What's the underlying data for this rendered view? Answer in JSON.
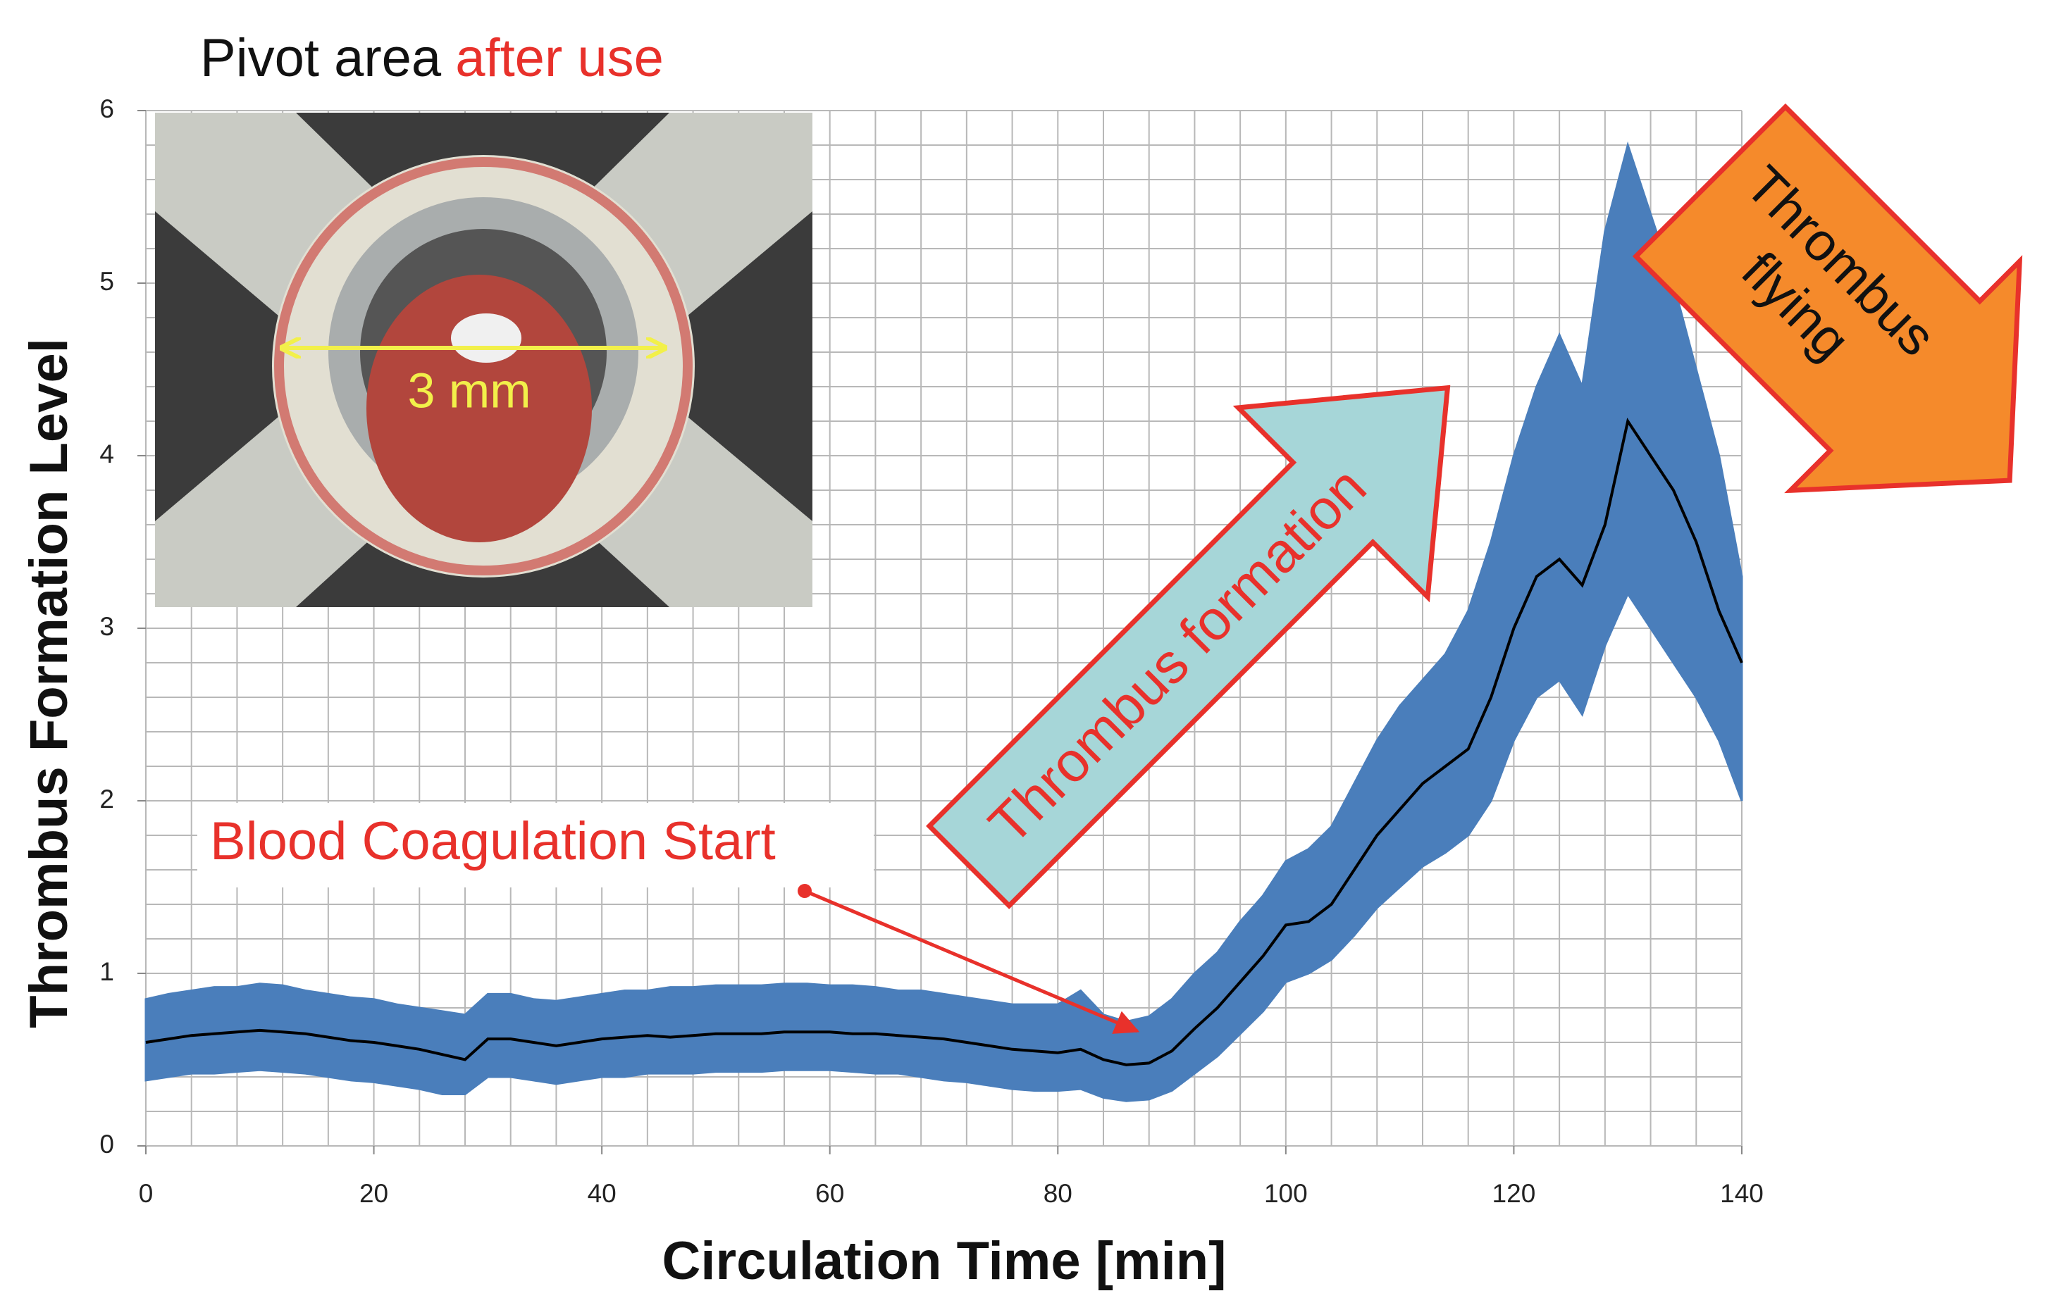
{
  "chart_data": {
    "type": "line",
    "inset_title": [
      "Pivot area",
      "after use"
    ],
    "inset_scale_label": "3 mm",
    "xlabel": "Circulation Time [min]",
    "ylabel": "Thrombus Formation Level",
    "annotations": {
      "coagulation": "Blood Coagulation Start",
      "formation": "Thrombus formation",
      "flying": [
        "Thrombus",
        "flying"
      ]
    },
    "xlim": [
      0,
      140
    ],
    "ylim": [
      0,
      6
    ],
    "xticks": [
      0,
      20,
      40,
      60,
      80,
      100,
      120,
      140
    ],
    "yticks": [
      0,
      1,
      2,
      3,
      4,
      5,
      6
    ],
    "grid": true,
    "xgrid": [
      0,
      4,
      8,
      12,
      16,
      20,
      24,
      28,
      32,
      36,
      40,
      44,
      48,
      52,
      56,
      60,
      64,
      68,
      72,
      76,
      80,
      84,
      88,
      92,
      96,
      100,
      104,
      108,
      112,
      116,
      120,
      124,
      128,
      132,
      136,
      140
    ],
    "ygrid": [
      0,
      0.2,
      0.4,
      0.6,
      0.8,
      1,
      1.2,
      1.4,
      1.6,
      1.8,
      2,
      2.2,
      2.4,
      2.6,
      2.8,
      3,
      3.2,
      3.4,
      3.6,
      3.8,
      4,
      4.2,
      4.4,
      4.6,
      4.8,
      5,
      5.2,
      5.4,
      5.6,
      5.8,
      6
    ],
    "x": [
      0,
      2,
      4,
      6,
      8,
      10,
      12,
      14,
      16,
      18,
      20,
      22,
      24,
      26,
      28,
      30,
      32,
      34,
      36,
      38,
      40,
      42,
      44,
      46,
      48,
      50,
      52,
      54,
      56,
      58,
      60,
      62,
      64,
      66,
      68,
      70,
      72,
      74,
      76,
      78,
      80,
      82,
      84,
      86,
      88,
      90,
      92,
      94,
      96,
      98,
      100,
      102,
      104,
      106,
      108,
      110,
      112,
      114,
      116,
      118,
      120,
      122,
      124,
      126,
      128,
      130,
      132,
      134,
      136,
      138,
      140
    ],
    "series": [
      {
        "color": "#4a7ebb",
        "low": [
          0.38,
          0.4,
          0.42,
          0.42,
          0.43,
          0.44,
          0.43,
          0.42,
          0.4,
          0.38,
          0.37,
          0.35,
          0.33,
          0.3,
          0.3,
          0.4,
          0.4,
          0.38,
          0.36,
          0.38,
          0.4,
          0.4,
          0.42,
          0.42,
          0.42,
          0.43,
          0.43,
          0.43,
          0.44,
          0.44,
          0.44,
          0.43,
          0.42,
          0.42,
          0.4,
          0.38,
          0.37,
          0.35,
          0.33,
          0.32,
          0.32,
          0.33,
          0.28,
          0.26,
          0.27,
          0.32,
          0.42,
          0.52,
          0.65,
          0.78,
          0.95,
          1.0,
          1.08,
          1.22,
          1.38,
          1.5,
          1.62,
          1.7,
          1.8,
          2.0,
          2.35,
          2.6,
          2.7,
          2.5,
          2.9,
          3.2,
          3.0,
          2.8,
          2.6,
          2.35,
          2.0
        ],
        "high": [
          0.85,
          0.88,
          0.9,
          0.92,
          0.92,
          0.94,
          0.93,
          0.9,
          0.88,
          0.86,
          0.85,
          0.82,
          0.8,
          0.78,
          0.76,
          0.88,
          0.88,
          0.85,
          0.84,
          0.86,
          0.88,
          0.9,
          0.9,
          0.92,
          0.92,
          0.93,
          0.93,
          0.93,
          0.94,
          0.94,
          0.93,
          0.93,
          0.92,
          0.9,
          0.9,
          0.88,
          0.86,
          0.84,
          0.82,
          0.82,
          0.82,
          0.9,
          0.76,
          0.72,
          0.75,
          0.85,
          1.0,
          1.12,
          1.3,
          1.45,
          1.65,
          1.72,
          1.85,
          2.1,
          2.35,
          2.55,
          2.7,
          2.85,
          3.1,
          3.5,
          4.0,
          4.4,
          4.7,
          4.4,
          5.3,
          5.8,
          5.4,
          5.0,
          4.5,
          4.0,
          3.3
        ]
      },
      {
        "color": "#000000",
        "values": [
          0.6,
          0.62,
          0.64,
          0.65,
          0.66,
          0.67,
          0.66,
          0.65,
          0.63,
          0.61,
          0.6,
          0.58,
          0.56,
          0.53,
          0.5,
          0.62,
          0.62,
          0.6,
          0.58,
          0.6,
          0.62,
          0.63,
          0.64,
          0.63,
          0.64,
          0.65,
          0.65,
          0.65,
          0.66,
          0.66,
          0.66,
          0.65,
          0.65,
          0.64,
          0.63,
          0.62,
          0.6,
          0.58,
          0.56,
          0.55,
          0.54,
          0.56,
          0.5,
          0.47,
          0.48,
          0.55,
          0.68,
          0.8,
          0.95,
          1.1,
          1.28,
          1.3,
          1.4,
          1.6,
          1.8,
          1.95,
          2.1,
          2.2,
          2.3,
          2.6,
          3.0,
          3.3,
          3.4,
          3.25,
          3.6,
          4.2,
          4.0,
          3.8,
          3.5,
          3.1,
          2.8
        ]
      }
    ]
  }
}
